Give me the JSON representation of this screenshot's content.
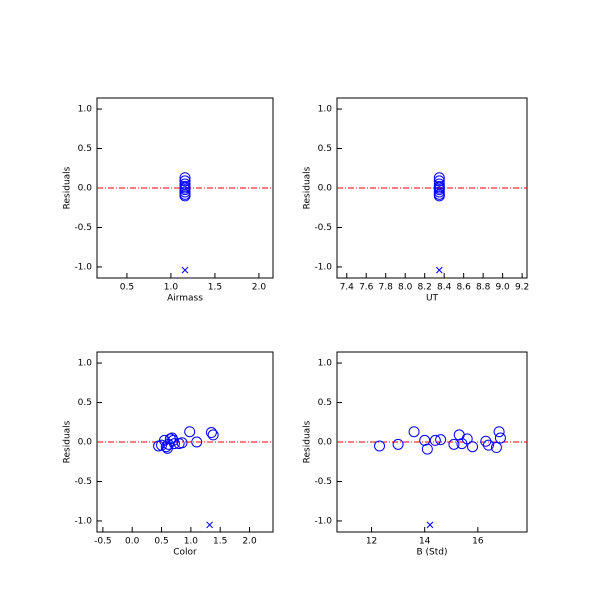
{
  "chart_data": [
    {
      "type": "scatter",
      "x_label": "Airmass",
      "y_label": "Residuals",
      "xlim": [
        0.16,
        2.16
      ],
      "xticks": [
        0.5,
        {
          "value": 1,
          "label": "1.0"
        },
        1.5,
        {
          "value": 2,
          "label": "2.0"
        }
      ],
      "ylim": [
        -1.14,
        1.14
      ],
      "yticks": [
        {
          "value": -1,
          "label": "-1.0"
        },
        -0.5,
        {
          "value": 0,
          "label": "0.0"
        },
        0.5,
        {
          "value": 1,
          "label": "1.0"
        }
      ],
      "reference_line": 0,
      "reference_color": "#ff0000",
      "series": [
        {
          "marker": "circle",
          "color": "#0000ff",
          "x": [
            1.16,
            1.16,
            1.16,
            1.16,
            1.16,
            1.16,
            1.16,
            1.16,
            1.16
          ],
          "values": [
            0.13,
            0.09,
            0.05,
            0.02,
            0.0,
            -0.02,
            -0.05,
            -0.08,
            -0.1
          ]
        },
        {
          "marker": "x",
          "color": "#0000ff",
          "x": [
            1.16
          ],
          "values": [
            -1.04
          ]
        }
      ]
    },
    {
      "type": "scatter",
      "x_label": "UT",
      "y_label": "Residuals",
      "xlim": [
        7.3,
        9.25
      ],
      "xticks": [
        7.4,
        7.6,
        7.8,
        {
          "value": 8,
          "label": "8.0"
        },
        8.2,
        8.4,
        8.6,
        8.8,
        {
          "value": 9,
          "label": "9.0"
        },
        9.2
      ],
      "ylim": [
        -1.14,
        1.14
      ],
      "yticks": [
        {
          "value": -1,
          "label": "-1.0"
        },
        -0.5,
        {
          "value": 0,
          "label": "0.0"
        },
        0.5,
        {
          "value": 1,
          "label": "1.0"
        }
      ],
      "reference_line": 0,
      "reference_color": "#ff0000",
      "series": [
        {
          "marker": "circle",
          "color": "#0000ff",
          "x": [
            8.35,
            8.35,
            8.35,
            8.35,
            8.35,
            8.35,
            8.35,
            8.35,
            8.35
          ],
          "values": [
            0.13,
            0.09,
            0.05,
            0.02,
            0.0,
            -0.02,
            -0.05,
            -0.08,
            -0.1
          ]
        },
        {
          "marker": "x",
          "color": "#0000ff",
          "x": [
            8.35
          ],
          "values": [
            -1.04
          ]
        }
      ]
    },
    {
      "type": "scatter",
      "x_label": "Color",
      "y_label": "Residuals",
      "xlim": [
        -0.6,
        2.4
      ],
      "xticks": [
        -0.5,
        {
          "value": 0,
          "label": "0.0"
        },
        0.5,
        {
          "value": 1,
          "label": "1.0"
        },
        1.5,
        {
          "value": 2,
          "label": "2.0"
        }
      ],
      "ylim": [
        -1.14,
        1.14
      ],
      "yticks": [
        {
          "value": -1,
          "label": "-1.0"
        },
        -0.5,
        {
          "value": 0,
          "label": "0.0"
        },
        0.5,
        {
          "value": 1,
          "label": "1.0"
        }
      ],
      "reference_line": 0,
      "reference_color": "#ff0000",
      "series": [
        {
          "marker": "circle",
          "color": "#0000ff",
          "x": [
            0.45,
            0.5,
            0.55,
            0.58,
            0.6,
            0.62,
            0.65,
            0.68,
            0.7,
            0.72,
            0.8,
            0.85,
            0.98,
            1.1,
            1.35,
            1.38
          ],
          "values": [
            -0.05,
            -0.04,
            0.02,
            -0.06,
            -0.08,
            -0.03,
            0.04,
            0.05,
            0.02,
            -0.02,
            -0.02,
            -0.01,
            0.13,
            0.0,
            0.12,
            0.09
          ]
        },
        {
          "marker": "x",
          "color": "#0000ff",
          "x": [
            1.32
          ],
          "values": [
            -1.05
          ]
        }
      ]
    },
    {
      "type": "scatter",
      "x_label": "B (Std)",
      "y_label": "Residuals",
      "xlim": [
        10.7,
        17.85
      ],
      "xticks": [
        12,
        14,
        16
      ],
      "ylim": [
        -1.14,
        1.14
      ],
      "yticks": [
        {
          "value": -1,
          "label": "-1.0"
        },
        -0.5,
        {
          "value": 0,
          "label": "0.0"
        },
        0.5,
        {
          "value": 1,
          "label": "1.0"
        }
      ],
      "reference_line": 0,
      "reference_color": "#ff0000",
      "series": [
        {
          "marker": "circle",
          "color": "#0000ff",
          "x": [
            12.3,
            13.0,
            13.6,
            14.0,
            14.1,
            14.4,
            14.6,
            15.1,
            15.3,
            15.4,
            15.6,
            15.8,
            16.3,
            16.4,
            16.7,
            16.8,
            16.85
          ],
          "values": [
            -0.05,
            -0.03,
            0.13,
            0.02,
            -0.09,
            0.02,
            0.03,
            -0.03,
            0.09,
            -0.02,
            0.04,
            -0.06,
            0.01,
            -0.04,
            -0.07,
            0.13,
            0.05
          ]
        },
        {
          "marker": "x",
          "color": "#0000ff",
          "x": [
            14.2
          ],
          "values": [
            -1.05
          ]
        }
      ]
    }
  ]
}
